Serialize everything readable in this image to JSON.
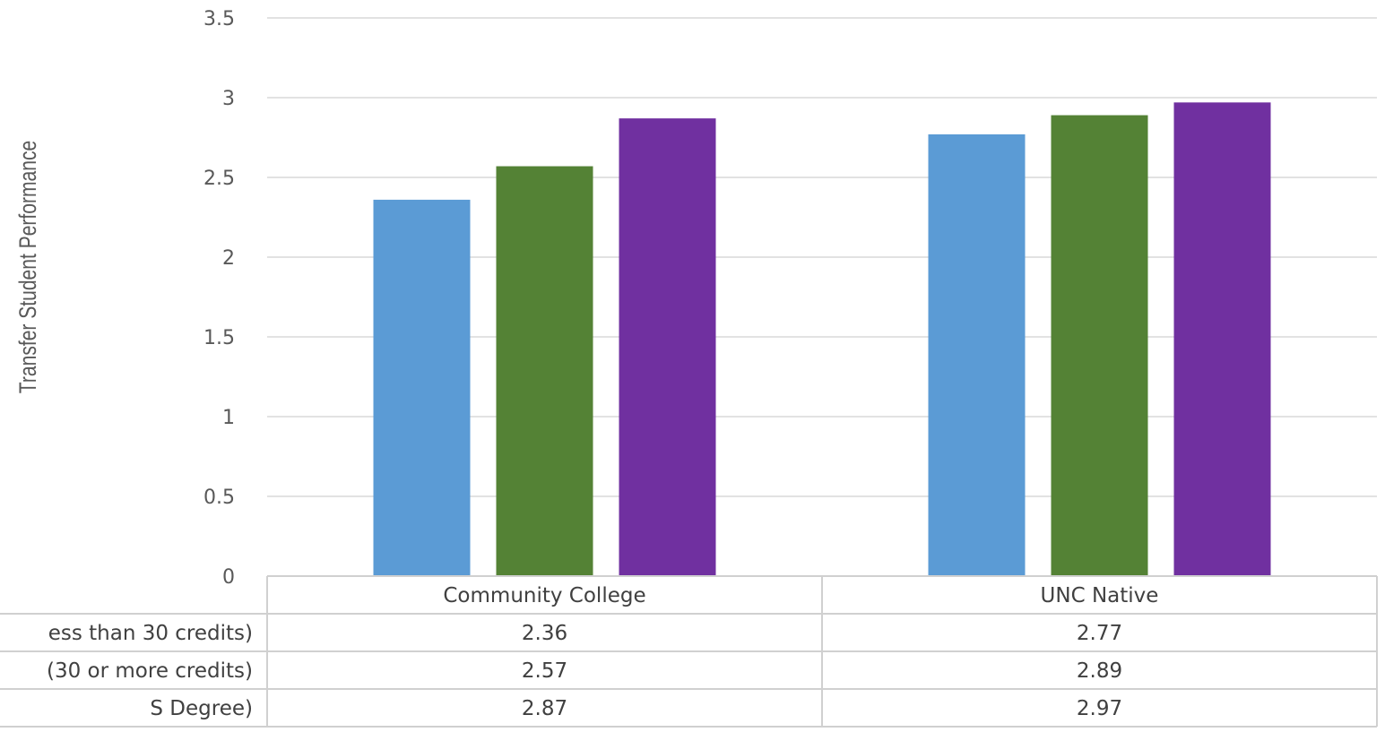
{
  "chart_data": {
    "type": "bar",
    "ylabel": "Transfer Student Performance",
    "ylim": [
      0,
      3.5
    ],
    "yticks": [
      "0",
      "0.5",
      "1",
      "1.5",
      "2",
      "2.5",
      "3",
      "3.5"
    ],
    "categories": [
      "Community College",
      "UNC Native"
    ],
    "series": [
      {
        "name": "ess than 30 credits)",
        "color": "#5b9bd5",
        "values": [
          2.36,
          2.77
        ],
        "labels": [
          "2.36",
          "2.77"
        ]
      },
      {
        "name": "(30 or more credits)",
        "color": "#548235",
        "values": [
          2.57,
          2.89
        ],
        "labels": [
          "2.57",
          "2.89"
        ]
      },
      {
        "name": "S Degree)",
        "color": "#7030a0",
        "values": [
          2.87,
          2.97
        ],
        "labels": [
          "2.87",
          "2.97"
        ]
      }
    ],
    "grid": true,
    "legend": "data-table"
  }
}
